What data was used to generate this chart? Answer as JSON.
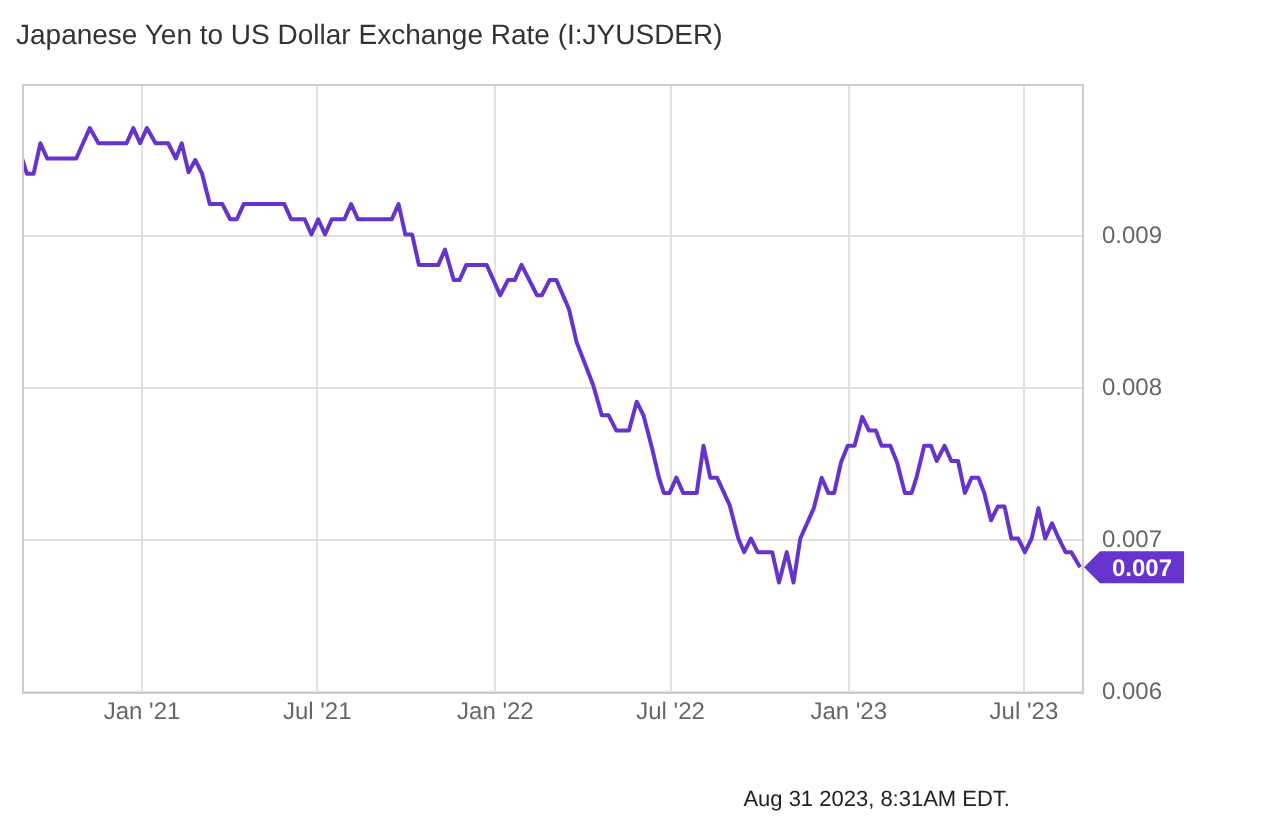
{
  "chart_data": {
    "type": "line",
    "title": "Japanese Yen to US Dollar Exchange Rate (I:JYUSDER)",
    "x": [
      "2020-08-30",
      "2020-09-04",
      "2020-09-11",
      "2020-09-18",
      "2020-09-25",
      "2020-10-25",
      "2020-11-08",
      "2020-11-17",
      "2020-12-16",
      "2020-12-23",
      "2020-12-30",
      "2021-01-06",
      "2021-01-15",
      "2021-01-28",
      "2021-02-05",
      "2021-02-11",
      "2021-02-18",
      "2021-02-25",
      "2021-03-04",
      "2021-03-12",
      "2021-03-25",
      "2021-04-02",
      "2021-04-09",
      "2021-04-16",
      "2021-05-28",
      "2021-06-04",
      "2021-06-18",
      "2021-06-25",
      "2021-07-02",
      "2021-07-09",
      "2021-07-16",
      "2021-07-29",
      "2021-08-05",
      "2021-08-12",
      "2021-09-16",
      "2021-09-23",
      "2021-09-30",
      "2021-10-07",
      "2021-10-14",
      "2021-11-03",
      "2021-11-10",
      "2021-11-19",
      "2021-11-25",
      "2021-12-02",
      "2021-12-23",
      "2022-01-06",
      "2022-01-14",
      "2022-01-21",
      "2022-01-28",
      "2022-02-13",
      "2022-02-18",
      "2022-02-26",
      "2022-03-05",
      "2022-03-18",
      "2022-03-26",
      "2022-04-12",
      "2022-04-21",
      "2022-04-28",
      "2022-05-06",
      "2022-05-19",
      "2022-05-27",
      "2022-06-03",
      "2022-06-12",
      "2022-06-19",
      "2022-06-24",
      "2022-06-30",
      "2022-07-07",
      "2022-07-14",
      "2022-07-28",
      "2022-08-04",
      "2022-08-11",
      "2022-08-18",
      "2022-08-31",
      "2022-09-09",
      "2022-09-15",
      "2022-09-22",
      "2022-09-29",
      "2022-10-14",
      "2022-10-21",
      "2022-10-29",
      "2022-11-05",
      "2022-11-12",
      "2022-11-26",
      "2022-12-04",
      "2022-12-11",
      "2022-12-17",
      "2022-12-24",
      "2022-12-31",
      "2023-01-07",
      "2023-01-15",
      "2023-01-22",
      "2023-01-29",
      "2023-02-04",
      "2023-02-13",
      "2023-02-20",
      "2023-02-28",
      "2023-03-07",
      "2023-03-12",
      "2023-03-20",
      "2023-03-27",
      "2023-04-02",
      "2023-04-10",
      "2023-04-17",
      "2023-04-24",
      "2023-05-01",
      "2023-05-08",
      "2023-05-15",
      "2023-05-21",
      "2023-05-28",
      "2023-06-04",
      "2023-06-11",
      "2023-06-18",
      "2023-06-25",
      "2023-07-02",
      "2023-07-09",
      "2023-07-16",
      "2023-07-23",
      "2023-07-30",
      "2023-08-06",
      "2023-08-13",
      "2023-08-19",
      "2023-08-28"
    ],
    "series": [
      {
        "color": "#6633cc",
        "values": [
          0.00951,
          0.00941,
          0.00941,
          0.00961,
          0.00951,
          0.00951,
          0.00971,
          0.00961,
          0.00961,
          0.00971,
          0.00961,
          0.00971,
          0.00961,
          0.00961,
          0.00951,
          0.00961,
          0.00942,
          0.0095,
          0.00941,
          0.00921,
          0.00921,
          0.00911,
          0.00911,
          0.00921,
          0.00921,
          0.00911,
          0.00911,
          0.00901,
          0.00911,
          0.00901,
          0.00911,
          0.00911,
          0.00921,
          0.00911,
          0.00911,
          0.00921,
          0.00901,
          0.00901,
          0.00881,
          0.00881,
          0.00891,
          0.00871,
          0.00871,
          0.00881,
          0.00881,
          0.00861,
          0.00871,
          0.00871,
          0.00881,
          0.00861,
          0.00861,
          0.00871,
          0.00871,
          0.00852,
          0.0083,
          0.00802,
          0.00782,
          0.00782,
          0.00772,
          0.00772,
          0.00791,
          0.00782,
          0.0076,
          0.00741,
          0.00731,
          0.00731,
          0.00741,
          0.00731,
          0.00731,
          0.00762,
          0.00741,
          0.00741,
          0.00723,
          0.00701,
          0.00692,
          0.00701,
          0.00692,
          0.00692,
          0.00672,
          0.00692,
          0.00672,
          0.00701,
          0.00721,
          0.00741,
          0.00731,
          0.00731,
          0.00751,
          0.00762,
          0.00762,
          0.00781,
          0.00772,
          0.00772,
          0.00762,
          0.00762,
          0.00751,
          0.00731,
          0.00731,
          0.00741,
          0.00762,
          0.00762,
          0.00752,
          0.00762,
          0.00752,
          0.00752,
          0.00731,
          0.00741,
          0.00741,
          0.00731,
          0.00713,
          0.00722,
          0.00722,
          0.00701,
          0.00701,
          0.00692,
          0.00701,
          0.00721,
          0.00701,
          0.00711,
          0.00701,
          0.00692,
          0.00692,
          0.00682
        ],
        "value_labels": [
          null,
          null,
          null,
          null,
          null,
          null,
          null,
          null,
          null,
          null,
          null,
          null,
          null,
          null,
          null,
          null,
          null,
          null,
          null,
          null,
          null,
          null,
          null,
          null,
          null,
          null,
          null,
          null,
          null,
          null,
          null,
          null,
          null,
          null,
          null,
          null,
          null,
          null,
          null,
          null,
          null,
          null,
          null,
          null,
          null,
          null,
          null,
          null,
          null,
          null,
          null,
          null,
          null,
          null,
          null,
          null,
          null,
          null,
          null,
          null,
          null,
          null,
          null,
          null,
          null,
          null,
          null,
          null,
          null,
          null,
          null,
          null,
          null,
          null,
          null,
          null,
          null,
          null,
          null,
          null,
          null,
          null,
          null,
          null,
          null,
          null,
          null,
          null,
          null,
          null,
          null,
          null,
          null,
          null,
          null,
          null,
          null,
          null,
          null,
          null,
          null,
          null,
          null,
          null,
          null,
          null,
          null,
          null,
          null,
          null,
          null,
          null,
          null,
          null,
          null,
          null,
          null,
          null,
          null,
          null,
          null,
          "0.007"
        ]
      }
    ],
    "xlim": [
      "2020-08-30",
      "2023-08-30"
    ],
    "xticks": [
      {
        "value": "2021-01-01",
        "label": "Jan '21"
      },
      {
        "value": "2021-07-01",
        "label": "Jul '21"
      },
      {
        "value": "2022-01-01",
        "label": "Jan '22"
      },
      {
        "value": "2022-07-01",
        "label": "Jul '22"
      },
      {
        "value": "2023-01-01",
        "label": "Jan '23"
      },
      {
        "value": "2023-07-01",
        "label": "Jul '23"
      }
    ],
    "ylim": [
      0.006,
      0.01
    ],
    "yticks": [
      0.006,
      0.007,
      0.008,
      0.009
    ],
    "grid": true,
    "legend": false,
    "marker": "none",
    "line_style": "solid",
    "annotations": [
      "Aug 31 2023, 8:31AM EDT."
    ]
  }
}
